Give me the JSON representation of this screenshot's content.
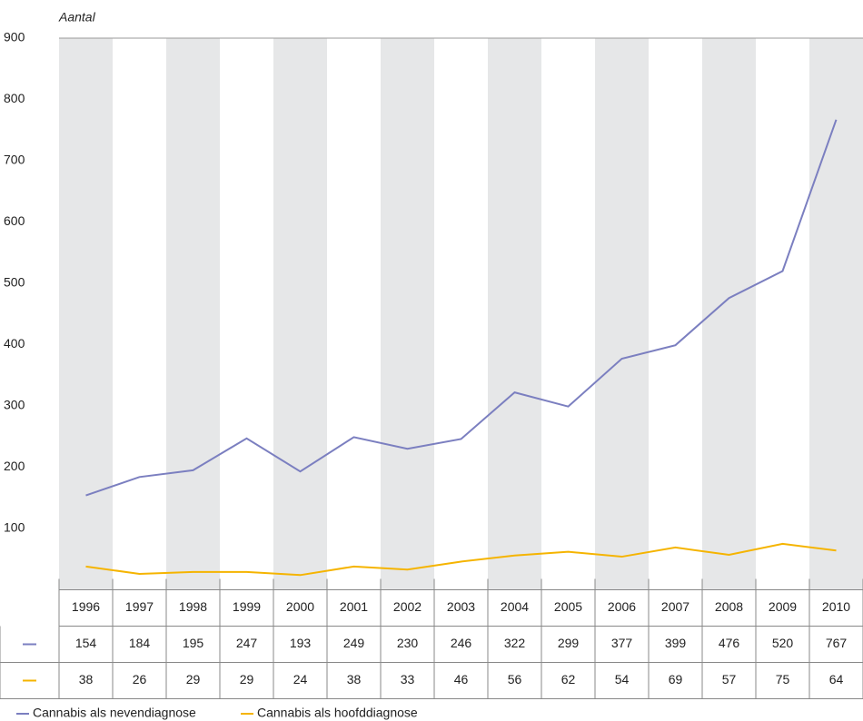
{
  "chart_data": {
    "type": "line",
    "y_axis_label": "Aantal",
    "categories": [
      "1996",
      "1997",
      "1998",
      "1999",
      "2000",
      "2001",
      "2002",
      "2003",
      "2004",
      "2005",
      "2006",
      "2007",
      "2008",
      "2009",
      "2010"
    ],
    "series": [
      {
        "name": "Cannabis als nevendiagnose",
        "color": "#7b7fc0",
        "values": [
          154,
          184,
          195,
          247,
          193,
          249,
          230,
          246,
          322,
          299,
          377,
          399,
          476,
          520,
          767
        ]
      },
      {
        "name": "Cannabis als hoofddiagnose",
        "color": "#f5b400",
        "values": [
          38,
          26,
          29,
          29,
          24,
          38,
          33,
          46,
          56,
          62,
          54,
          69,
          57,
          75,
          64
        ]
      }
    ],
    "ylim": [
      0,
      900
    ],
    "yticks": [
      100,
      200,
      300,
      400,
      500,
      600,
      700,
      800,
      900
    ],
    "bands": "#e6e7e8"
  }
}
